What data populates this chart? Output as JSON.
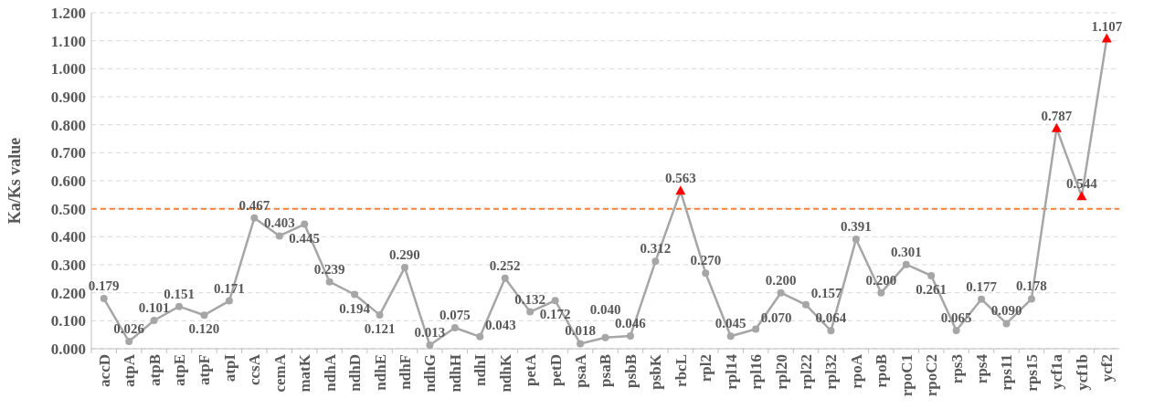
{
  "chart_data": {
    "type": "line",
    "ylabel": "Ka/Ks value",
    "categories": [
      "accD",
      "atpA",
      "atpB",
      "atpE",
      "atpF",
      "atpI",
      "ccsA",
      "cemA",
      "matK",
      "ndhA",
      "ndhD",
      "ndhE",
      "ndhF",
      "ndhG",
      "ndhH",
      "ndhI",
      "ndhK",
      "petA",
      "petD",
      "psaA",
      "psaB",
      "psbB",
      "psbK",
      "rbcL",
      "rpl2",
      "rpl14",
      "rpl16",
      "rpl20",
      "rpl22",
      "rpl32",
      "rpoA",
      "rpoB",
      "rpoC1",
      "rpoC2",
      "rps3",
      "rps4",
      "rps11",
      "rps15",
      "ycf1a",
      "ycf1b",
      "ycf2"
    ],
    "series": [
      {
        "color": "#a6a6a6",
        "marker": "none",
        "values": [
          0.179,
          0.026,
          0.101,
          0.151,
          0.12,
          0.171,
          0.467,
          0.403,
          0.445,
          0.239,
          0.194,
          0.121,
          0.29,
          0.013,
          0.075,
          0.043,
          0.252,
          0.132,
          0.172,
          0.018,
          0.04,
          0.046,
          0.312,
          0.563,
          0.27,
          0.045,
          0.07,
          0.2,
          0.157,
          0.064,
          0.391,
          0.2,
          0.301,
          0.261,
          0.065,
          0.177,
          0.09,
          0.178,
          0.787,
          0.544,
          1.107
        ],
        "value_labels": [
          "0.179",
          "0.026",
          "0.101",
          "0.151",
          "0.120",
          "0.171",
          "0.467",
          "0.403",
          "0.445",
          "0.239",
          "0.194",
          "0.121",
          "0.290",
          "0.013",
          "0.075",
          "0.043",
          "0.252",
          "0.132",
          "0.172",
          "0.018",
          "0.040",
          "0.046",
          "0.312",
          "0.563",
          "0.270",
          "0.045",
          "0.070",
          "0.200",
          "0.157",
          "0.064",
          "0.391",
          "0.200",
          "0.301",
          "0.261",
          "0.065",
          "0.177",
          "0.090",
          "0.178",
          "0.787",
          "0.544",
          "1.107"
        ]
      },
      {
        "type": "scatter",
        "color": "#a6a6a6",
        "marker": "circle",
        "x": [
          "accD",
          "atpA",
          "atpB",
          "atpE",
          "atpF",
          "atpI",
          "ccsA",
          "cemA",
          "matK",
          "ndhA",
          "ndhD",
          "ndhE",
          "ndhF",
          "ndhG",
          "ndhH",
          "ndhI",
          "ndhK",
          "petA",
          "petD",
          "psaA",
          "psaB",
          "psbB",
          "psbK",
          "rpl2",
          "rpl14",
          "rpl16",
          "rpl20",
          "rpl22",
          "rpl32",
          "rpoA",
          "rpoB",
          "rpoC1",
          "rpoC2",
          "rps3",
          "rps4",
          "rps11",
          "rps15"
        ],
        "values": [
          0.179,
          0.026,
          0.101,
          0.151,
          0.12,
          0.171,
          0.467,
          0.403,
          0.445,
          0.239,
          0.194,
          0.121,
          0.29,
          0.013,
          0.075,
          0.043,
          0.252,
          0.132,
          0.172,
          0.018,
          0.04,
          0.046,
          0.312,
          0.27,
          0.045,
          0.07,
          0.2,
          0.157,
          0.064,
          0.391,
          0.2,
          0.301,
          0.261,
          0.065,
          0.177,
          0.09,
          0.178
        ]
      },
      {
        "type": "scatter",
        "color": "#ff0000",
        "marker": "triangle",
        "x": [
          "rbcL",
          "ycf1a",
          "ycf1b",
          "ycf2"
        ],
        "values": [
          0.563,
          0.787,
          0.544,
          1.107
        ]
      }
    ],
    "ylim": [
      0,
      1.2
    ],
    "yticks": [
      {
        "value": 0,
        "label": "0.000"
      },
      {
        "value": 0.1,
        "label": "0.100"
      },
      {
        "value": 0.2,
        "label": "0.200"
      },
      {
        "value": 0.3,
        "label": "0.300"
      },
      {
        "value": 0.4,
        "label": "0.400"
      },
      {
        "value": 0.5,
        "label": "0.500"
      },
      {
        "value": 0.6,
        "label": "0.600"
      },
      {
        "value": 0.7,
        "label": "0.700"
      },
      {
        "value": 0.8,
        "label": "0.800"
      },
      {
        "value": 0.9,
        "label": "0.900"
      },
      {
        "value": 1.0,
        "label": "1.000"
      },
      {
        "value": 1.1,
        "label": "1.100"
      },
      {
        "value": 1.2,
        "label": "1.200"
      }
    ],
    "grid": "y",
    "ref_lines": [
      {
        "axis": "y",
        "value": 0.5,
        "color": "#f4823c",
        "line_style": "dashed"
      }
    ]
  }
}
